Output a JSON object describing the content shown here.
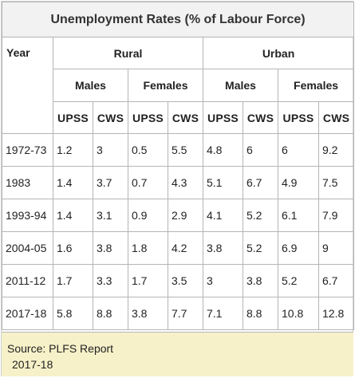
{
  "table": {
    "title": "Unemployment Rates (% of Labour Force)",
    "year_header": "Year",
    "groups": [
      "Rural",
      "Urban"
    ],
    "sexes": [
      "Males",
      "Females",
      "Males",
      "Females"
    ],
    "metrics": [
      "UPSS",
      "CWS",
      "UPSS",
      "CWS",
      "UPSS",
      "CWS",
      "UPSS",
      "CWS"
    ],
    "rows": [
      {
        "year": "1972-73",
        "values": [
          "1.2",
          "3",
          "0.5",
          "5.5",
          "4.8",
          "6",
          "6",
          "9.2"
        ]
      },
      {
        "year": "1983",
        "values": [
          "1.4",
          "3.7",
          "0.7",
          "4.3",
          "5.1",
          "6.7",
          "4.9",
          "7.5"
        ]
      },
      {
        "year": "1993-94",
        "values": [
          "1.4",
          "3.1",
          "0.9",
          "2.9",
          "4.1",
          "5.2",
          "6.1",
          "7.9"
        ]
      },
      {
        "year": "2004-05",
        "values": [
          "1.6",
          "3.8",
          "1.8",
          "4.2",
          "3.8",
          "5.2",
          "6.9",
          "9"
        ]
      },
      {
        "year": "2011-12",
        "values": [
          "1.7",
          "3.3",
          "1.7",
          "3.5",
          "3",
          "3.8",
          "5.2",
          "6.7"
        ]
      },
      {
        "year": "2017-18",
        "values": [
          "5.8",
          "8.8",
          "3.8",
          "7.7",
          "7.1",
          "8.8",
          "10.8",
          "12.8"
        ]
      }
    ]
  },
  "source": {
    "line1": "Source: PLFS Report",
    "line2": "2017-18"
  }
}
